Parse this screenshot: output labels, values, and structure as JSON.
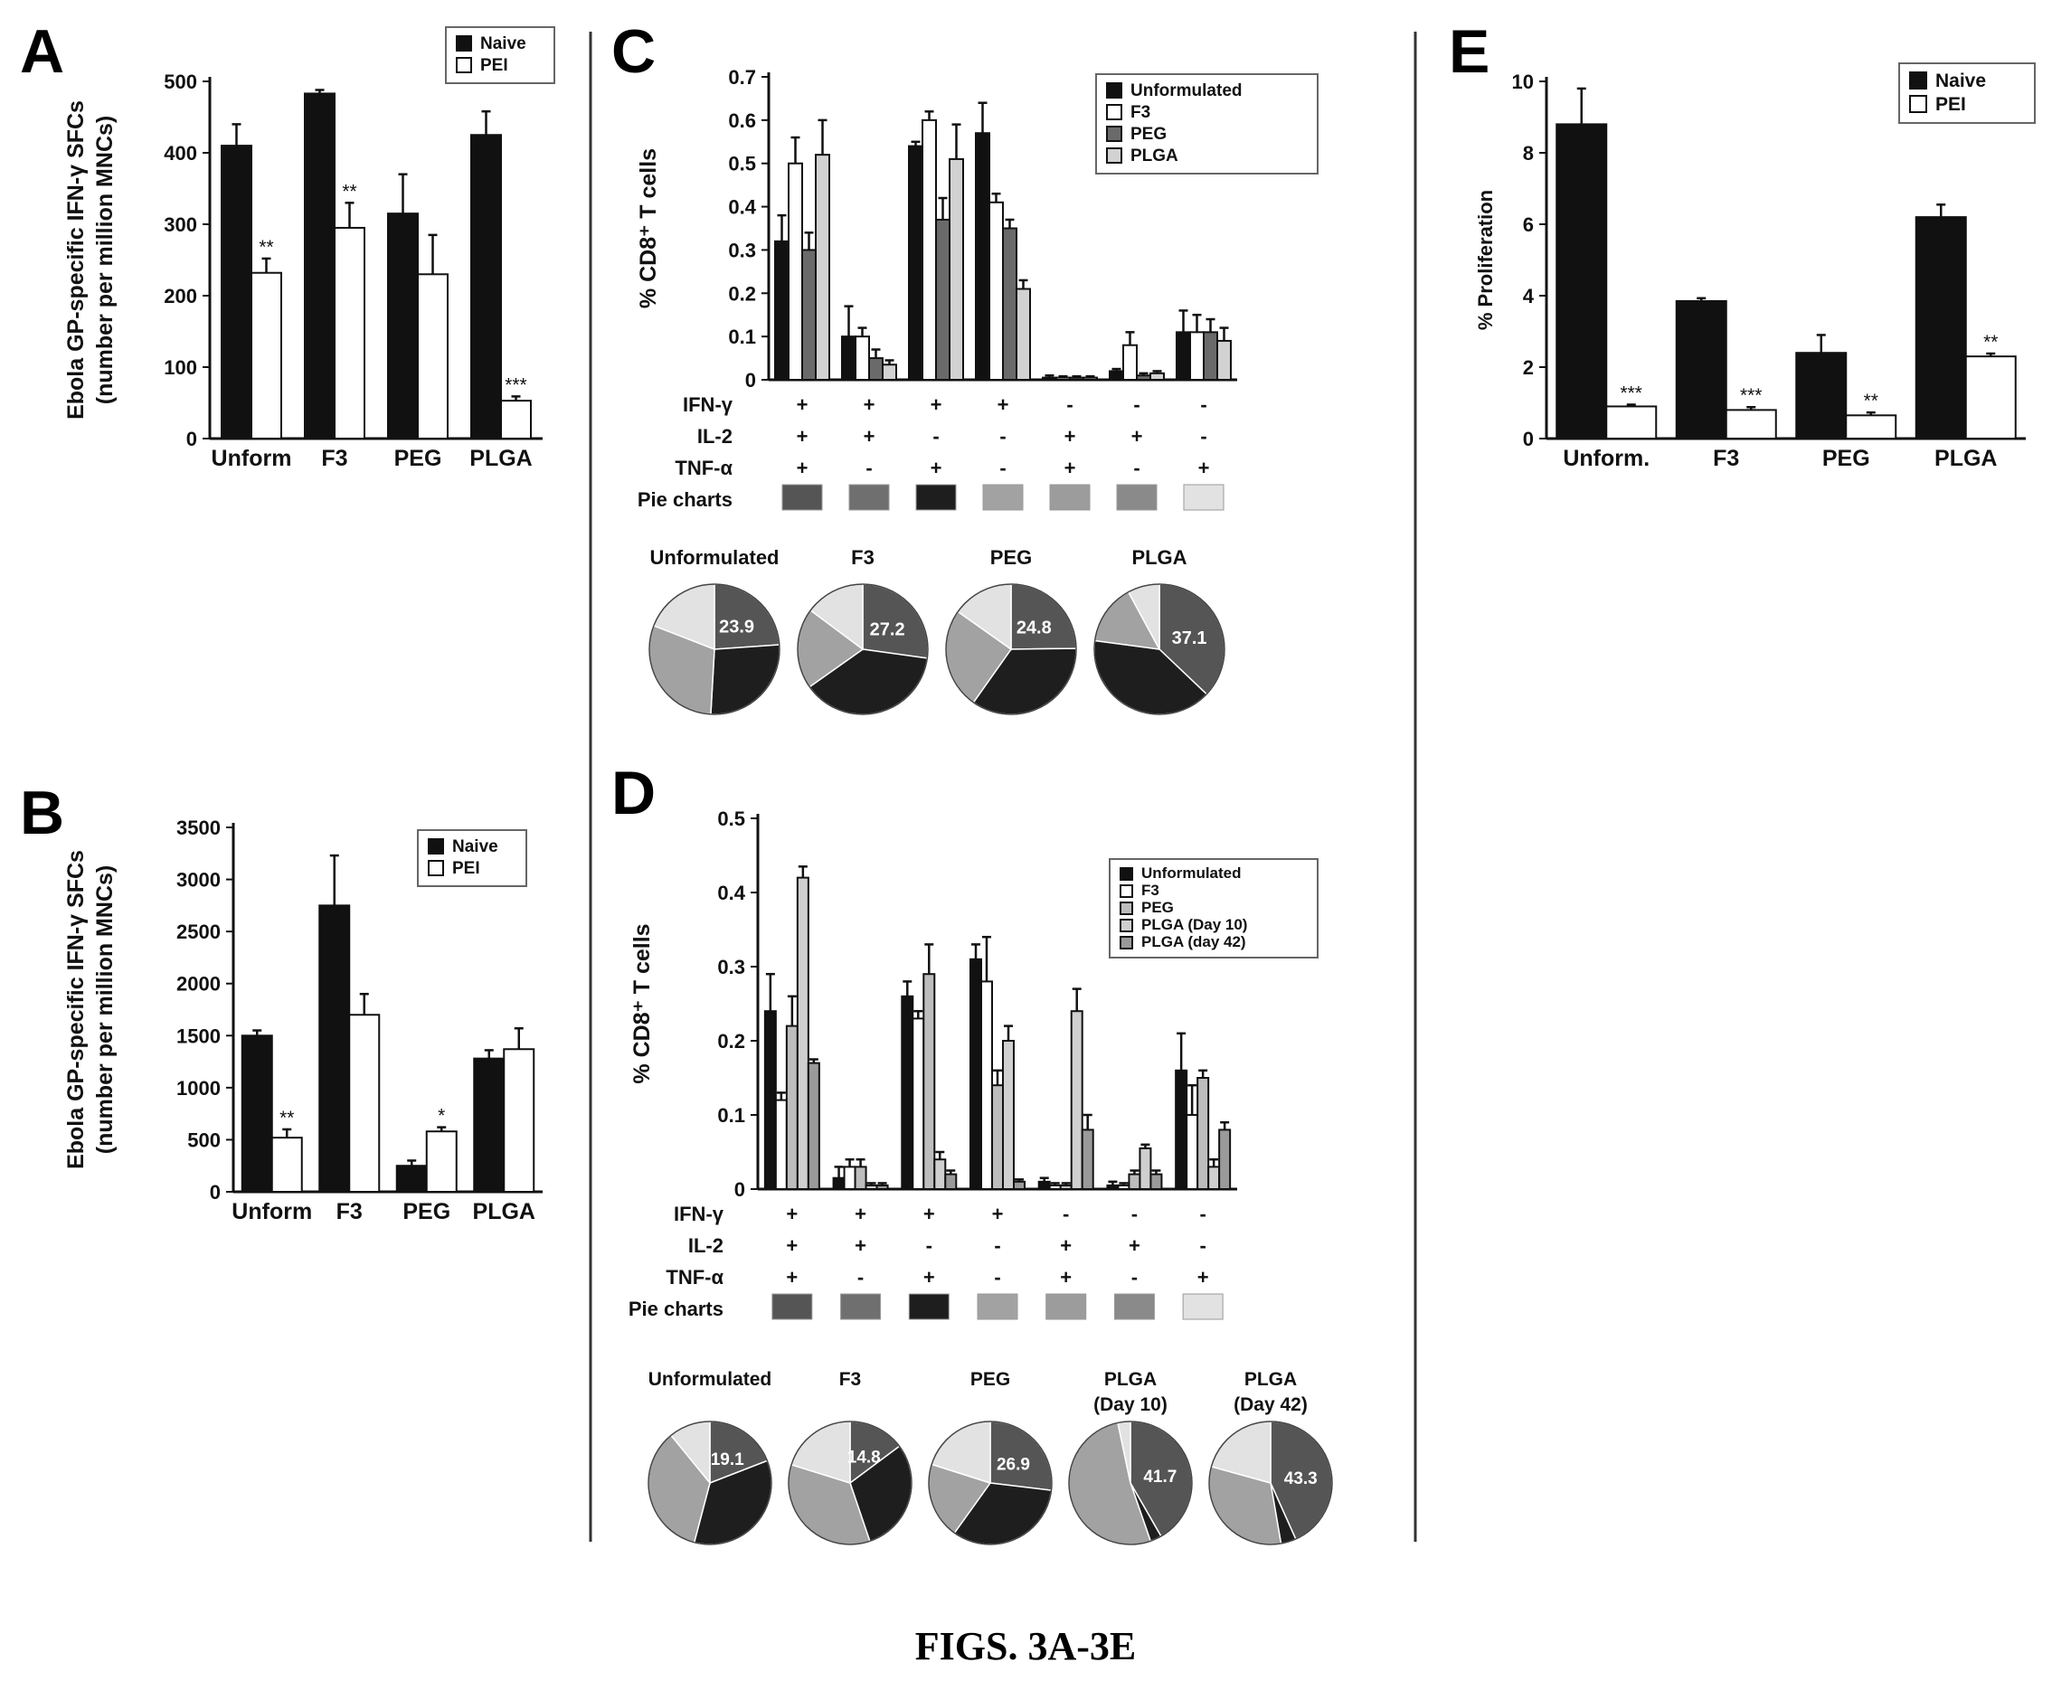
{
  "figure_caption": "FIGS. 3A-3E",
  "colors": {
    "naive": "#111111",
    "pei": "#ffffff",
    "unformulated": "#111111",
    "f3": "#ffffff",
    "peg": "#6a6a6a",
    "plga": "#d2d2d2",
    "plga_d10": "#cfcfcf",
    "plga_d42": "#9a9a9a",
    "pie_boxes": [
      "#555555",
      "#6f6f6f",
      "#1e1e1e",
      "#a2a2a2",
      "#9c9c9c",
      "#8a8a8a",
      "#e2e2e2"
    ]
  },
  "panel_labels": {
    "A": "A",
    "B": "B",
    "C": "C",
    "D": "D",
    "E": "E"
  },
  "chart_data": [
    {
      "id": "A",
      "type": "bar",
      "ylabel": [
        "Ebola GP-specific IFN-γ SFCs",
        "(number per million MNCs)"
      ],
      "categories": [
        "Unform",
        "F3",
        "PEG",
        "PLGA"
      ],
      "ylim": [
        0,
        500
      ],
      "yticks": [
        0,
        100,
        200,
        300,
        400,
        500
      ],
      "series": [
        {
          "name": "Naive",
          "color": "naive",
          "values": [
            410,
            483,
            315,
            425
          ],
          "errors": [
            30,
            5,
            55,
            33
          ]
        },
        {
          "name": "PEI",
          "color": "pei",
          "values": [
            232,
            295,
            230,
            53
          ],
          "errors": [
            20,
            35,
            55,
            6
          ]
        }
      ],
      "annotations": [
        {
          "series": 1,
          "index": 0,
          "text": "**"
        },
        {
          "series": 1,
          "index": 1,
          "text": "**"
        },
        {
          "series": 1,
          "index": 3,
          "text": "***"
        }
      ],
      "legend_position": "top-right"
    },
    {
      "id": "B",
      "type": "bar",
      "ylabel": [
        "Ebola GP-specific IFN-γ SFCs",
        "(number per million MNCs)"
      ],
      "categories": [
        "Unform",
        "F3",
        "PEG",
        "PLGA"
      ],
      "ylim": [
        0,
        3500
      ],
      "yticks": [
        0,
        500,
        1000,
        1500,
        2000,
        2500,
        3000,
        3500
      ],
      "series": [
        {
          "name": "Naive",
          "color": "naive",
          "values": [
            1500,
            2750,
            250,
            1280
          ],
          "errors": [
            50,
            480,
            50,
            80
          ]
        },
        {
          "name": "PEI",
          "color": "pei",
          "values": [
            520,
            1700,
            580,
            1370
          ],
          "errors": [
            80,
            200,
            40,
            200
          ]
        }
      ],
      "annotations": [
        {
          "series": 1,
          "index": 0,
          "text": "**"
        },
        {
          "series": 1,
          "index": 2,
          "text": "*"
        }
      ],
      "legend_position": "top-right"
    },
    {
      "id": "C",
      "type": "bar",
      "ylabel": "% CD8⁺ T cells",
      "ylim": [
        0,
        0.7
      ],
      "yticks": [
        0,
        0.1,
        0.2,
        0.3,
        0.4,
        0.5,
        0.6,
        0.7
      ],
      "ytick_labels": [
        "0",
        "0.1",
        "0.2",
        "0.3",
        "0.4",
        "0.5",
        "0.6",
        "0.7"
      ],
      "groups": 7,
      "series": [
        {
          "name": "Unformulated",
          "color": "unformulated",
          "values": [
            0.32,
            0.1,
            0.54,
            0.57,
            0.005,
            0.02,
            0.11
          ],
          "errors": [
            0.06,
            0.07,
            0.01,
            0.07,
            0.005,
            0.005,
            0.05
          ]
        },
        {
          "name": "F3",
          "color": "f3",
          "values": [
            0.5,
            0.1,
            0.6,
            0.41,
            0.005,
            0.08,
            0.11
          ],
          "errors": [
            0.06,
            0.02,
            0.02,
            0.02,
            0.003,
            0.03,
            0.04
          ]
        },
        {
          "name": "PEG",
          "color": "peg",
          "values": [
            0.3,
            0.05,
            0.37,
            0.35,
            0.005,
            0.01,
            0.11
          ],
          "errors": [
            0.04,
            0.02,
            0.05,
            0.02,
            0.003,
            0.005,
            0.03
          ]
        },
        {
          "name": "PLGA",
          "color": "plga",
          "values": [
            0.52,
            0.035,
            0.51,
            0.21,
            0.005,
            0.015,
            0.09
          ],
          "errors": [
            0.08,
            0.01,
            0.08,
            0.02,
            0.003,
            0.005,
            0.03
          ]
        }
      ],
      "marker_rows": [
        {
          "label": "IFN-γ",
          "values": [
            "+",
            "+",
            "+",
            "+",
            "-",
            "-",
            "-"
          ]
        },
        {
          "label": "IL-2",
          "values": [
            "+",
            "+",
            "-",
            "-",
            "+",
            "+",
            "-"
          ]
        },
        {
          "label": "TNF-α",
          "values": [
            "+",
            "-",
            "+",
            "-",
            "+",
            "-",
            "+"
          ]
        }
      ],
      "pie_row_label": "Pie charts",
      "legend_position": "top-right",
      "pies": [
        {
          "title": [
            "Unformulated"
          ],
          "label": "23.9",
          "slices": [
            23.9,
            27,
            30,
            19.1
          ]
        },
        {
          "title": [
            "F3"
          ],
          "label": "27.2",
          "slices": [
            27.2,
            38,
            20,
            14.8
          ]
        },
        {
          "title": [
            "PEG"
          ],
          "label": "24.8",
          "slices": [
            24.8,
            35,
            25,
            15.2
          ]
        },
        {
          "title": [
            "PLGA"
          ],
          "label": "37.1",
          "slices": [
            37.1,
            40,
            15,
            7.9
          ]
        }
      ]
    },
    {
      "id": "D",
      "type": "bar",
      "ylabel": "% CD8⁺ T cells",
      "ylim": [
        0,
        0.5
      ],
      "yticks": [
        0,
        0.1,
        0.2,
        0.3,
        0.4,
        0.5
      ],
      "ytick_labels": [
        "0",
        "0.1",
        "0.2",
        "0.3",
        "0.4",
        "0.5"
      ],
      "groups": 7,
      "series": [
        {
          "name": "Unformulated",
          "color": "unformulated",
          "values": [
            0.24,
            0.015,
            0.26,
            0.31,
            0.01,
            0.005,
            0.16
          ],
          "errors": [
            0.05,
            0.015,
            0.02,
            0.02,
            0.005,
            0.005,
            0.05
          ]
        },
        {
          "name": "F3",
          "color": "f3",
          "values": [
            0.12,
            0.03,
            0.23,
            0.28,
            0.005,
            0.005,
            0.1
          ],
          "errors": [
            0.01,
            0.01,
            0.01,
            0.06,
            0.003,
            0.003,
            0.04
          ]
        },
        {
          "name": "PEG",
          "color": "peg_light",
          "values": [
            0.22,
            0.03,
            0.29,
            0.14,
            0.005,
            0.02,
            0.15
          ],
          "errors": [
            0.04,
            0.01,
            0.04,
            0.02,
            0.003,
            0.005,
            0.01
          ]
        },
        {
          "name": "PLGA (Day 10)",
          "color": "plga_d10",
          "values": [
            0.42,
            0.005,
            0.04,
            0.2,
            0.24,
            0.055,
            0.03
          ],
          "errors": [
            0.015,
            0.003,
            0.01,
            0.02,
            0.03,
            0.005,
            0.01
          ]
        },
        {
          "name": "PLGA (day 42)",
          "color": "plga_d42",
          "values": [
            0.17,
            0.005,
            0.02,
            0.01,
            0.08,
            0.02,
            0.08
          ],
          "errors": [
            0.005,
            0.003,
            0.005,
            0.003,
            0.02,
            0.005,
            0.01
          ]
        }
      ],
      "marker_rows": [
        {
          "label": "IFN-γ",
          "values": [
            "+",
            "+",
            "+",
            "+",
            "-",
            "-",
            "-"
          ]
        },
        {
          "label": "IL-2",
          "values": [
            "+",
            "+",
            "-",
            "-",
            "+",
            "+",
            "-"
          ]
        },
        {
          "label": "TNF-α",
          "values": [
            "+",
            "-",
            "+",
            "-",
            "+",
            "-",
            "+"
          ]
        }
      ],
      "pie_row_label": "Pie charts",
      "legend_position": "top-right",
      "pies": [
        {
          "title": [
            "Unformulated"
          ],
          "label": "19.1",
          "slices": [
            19.1,
            35,
            35,
            10.9
          ]
        },
        {
          "title": [
            "F3"
          ],
          "label": "14.8",
          "slices": [
            14.8,
            30,
            35,
            20.2
          ]
        },
        {
          "title": [
            "PEG"
          ],
          "label": "26.9",
          "slices": [
            26.9,
            33,
            20,
            20.1
          ]
        },
        {
          "title": [
            "PLGA",
            "(Day 10)"
          ],
          "label": "41.7",
          "slices": [
            41.7,
            3,
            52,
            3.3
          ]
        },
        {
          "title": [
            "PLGA",
            "(Day 42)"
          ],
          "label": "43.3",
          "slices": [
            43.3,
            4,
            32,
            20.7
          ]
        }
      ]
    },
    {
      "id": "E",
      "type": "bar",
      "ylabel": "% Proliferation",
      "categories": [
        "Unform.",
        "F3",
        "PEG",
        "PLGA"
      ],
      "ylim": [
        0,
        10
      ],
      "yticks": [
        0,
        2,
        4,
        6,
        8,
        10
      ],
      "series": [
        {
          "name": "Naive",
          "color": "naive",
          "values": [
            8.8,
            3.85,
            2.4,
            6.2
          ],
          "errors": [
            1.0,
            0.08,
            0.5,
            0.35
          ]
        },
        {
          "name": "PEI",
          "color": "pei",
          "values": [
            0.9,
            0.8,
            0.65,
            2.3
          ],
          "errors": [
            0.05,
            0.08,
            0.08,
            0.08
          ]
        }
      ],
      "annotations": [
        {
          "series": 1,
          "index": 0,
          "text": "***"
        },
        {
          "series": 1,
          "index": 1,
          "text": "***"
        },
        {
          "series": 1,
          "index": 2,
          "text": "**"
        },
        {
          "series": 1,
          "index": 3,
          "text": "**"
        }
      ],
      "legend_position": "top-right"
    }
  ]
}
